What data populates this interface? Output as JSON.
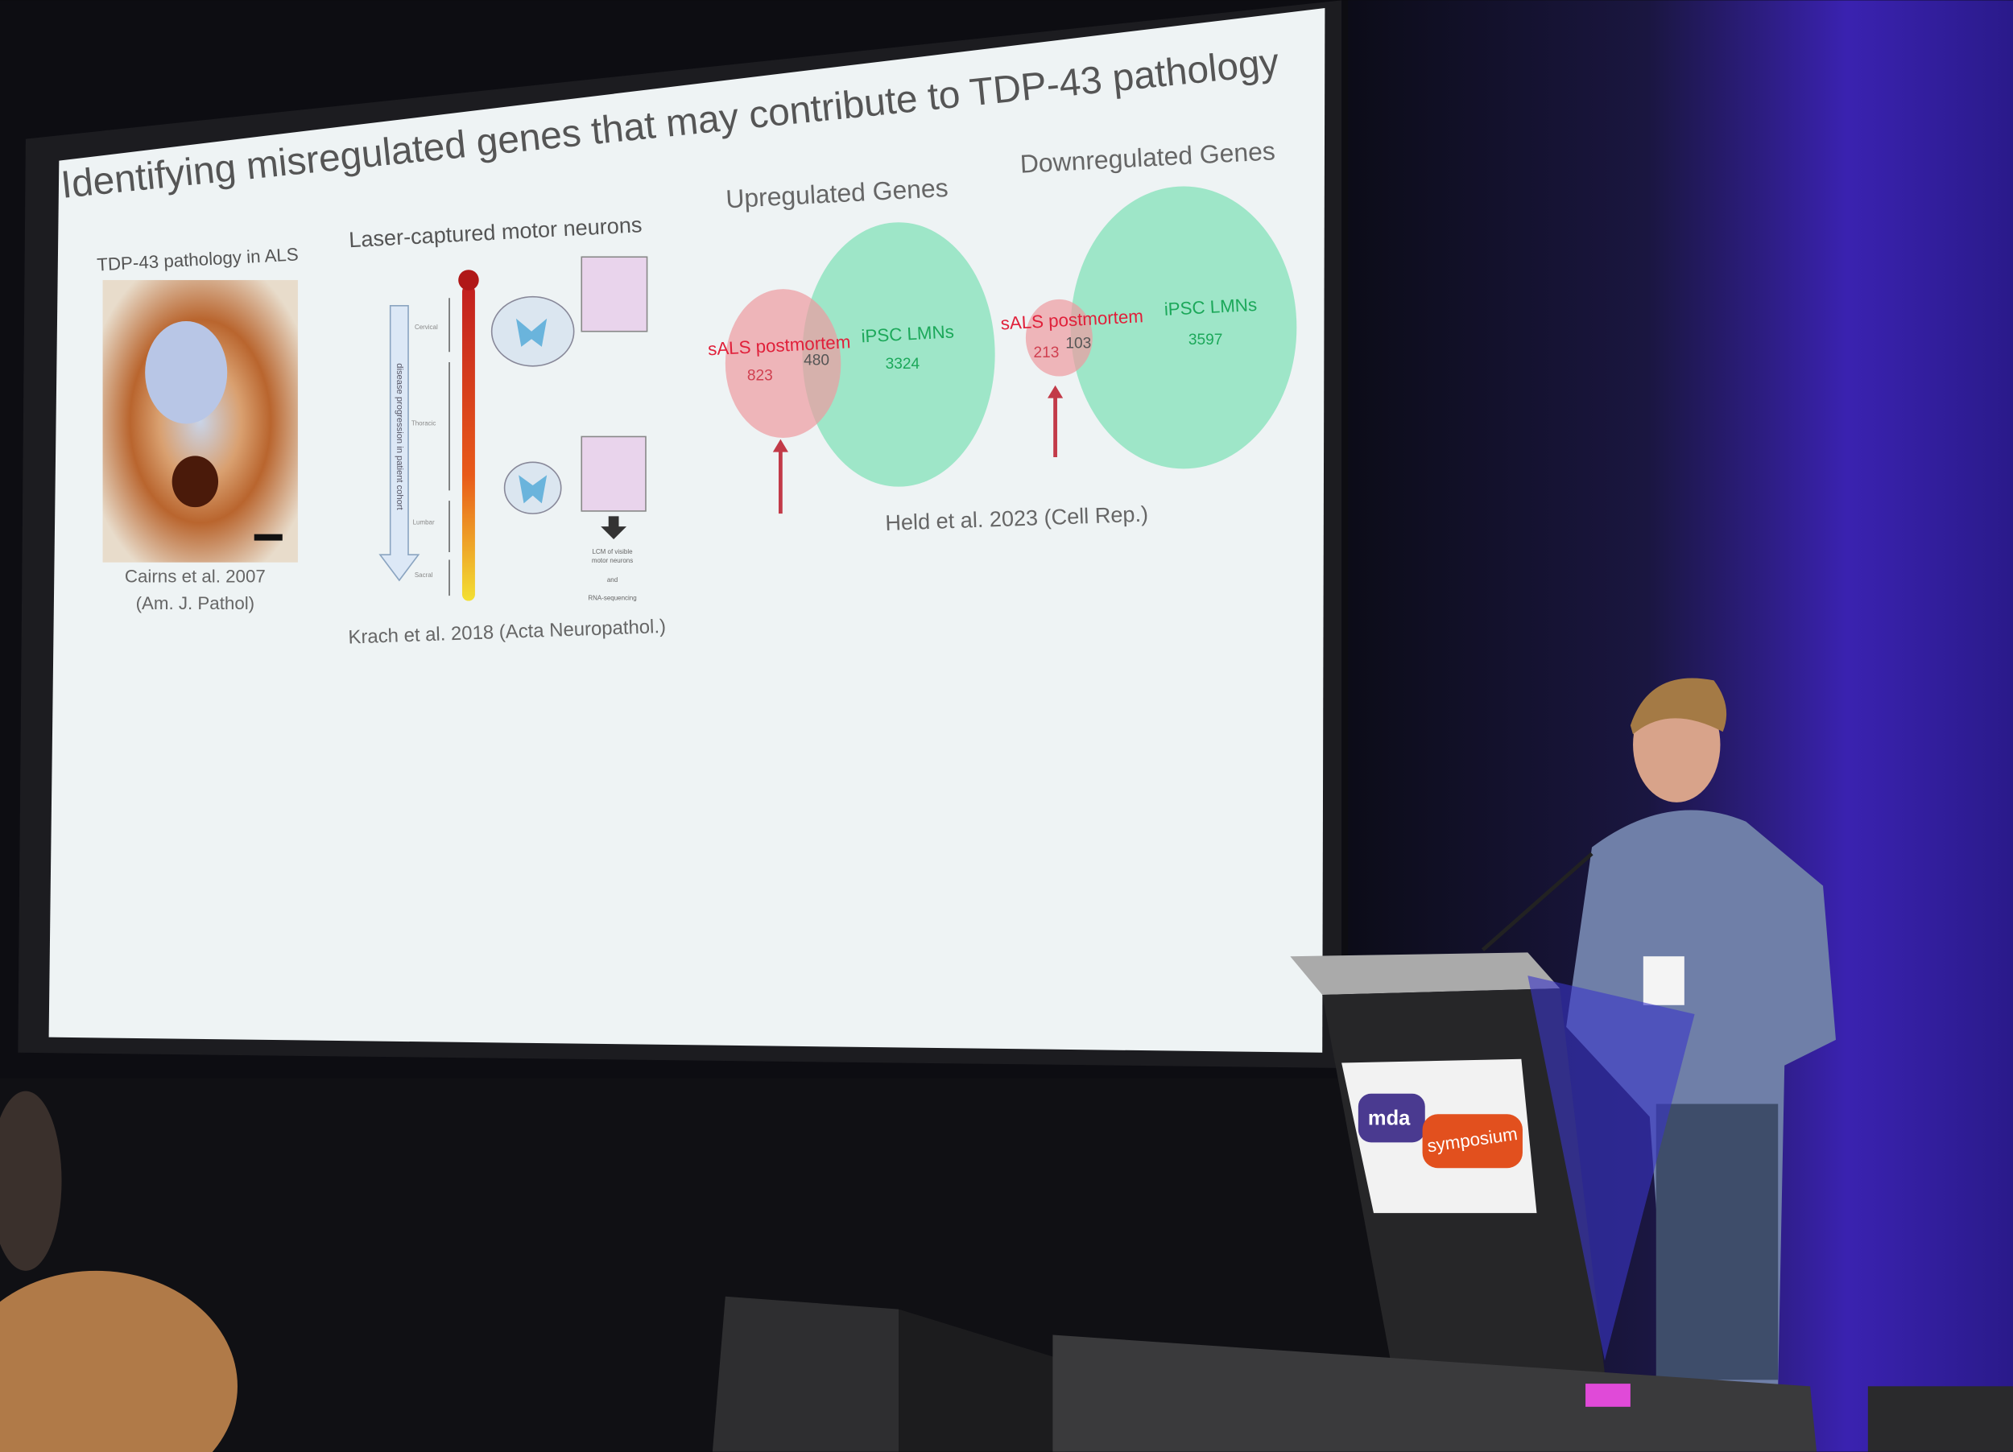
{
  "slide": {
    "title": "Identifying misregulated genes that may contribute to TDP-43 pathology",
    "panel1": {
      "heading": "TDP-43 pathology in ALS",
      "citation_line1": "Cairns et al. 2007",
      "citation_line2": "(Am. J. Pathol)"
    },
    "panel2": {
      "heading": "Laser-captured motor neurons",
      "axis_label": "disease progression in patient cohort",
      "regions": [
        "Cervical",
        "Thoracic",
        "Lumbar",
        "Sacral"
      ],
      "step": [
        "LCM of visible",
        "motor neurons",
        "and",
        "RNA-sequencing"
      ],
      "citation": "Krach et al. 2018 (Acta Neuropathol.)"
    },
    "venn_up": {
      "heading": "Upregulated Genes",
      "left_label": "sALS postmortem",
      "left_only": 823,
      "overlap": 480,
      "right_label": "iPSC LMNs",
      "right_only": 3324
    },
    "venn_down": {
      "heading": "Downregulated Genes",
      "left_label": "sALS postmortem",
      "left_only": 213,
      "overlap": 103,
      "right_label": "iPSC LMNs",
      "right_only": 3597
    },
    "venn_citation": "Held et al. 2023 (Cell Rep.)"
  },
  "podium": {
    "logo": "mda",
    "banner": "symposium"
  }
}
